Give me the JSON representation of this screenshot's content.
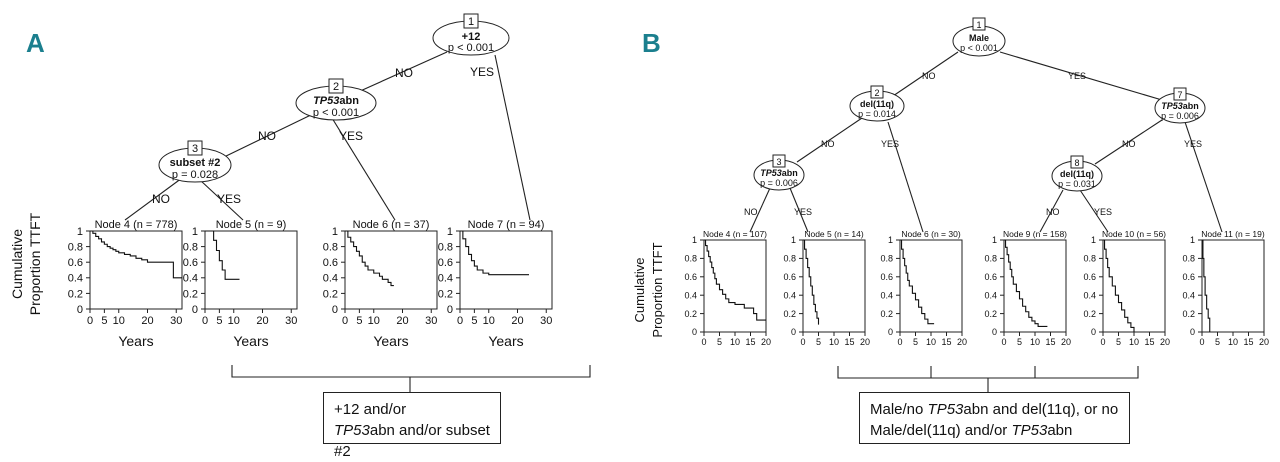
{
  "panelA": {
    "letter": "A",
    "ylabel_line1": "Cumulative",
    "ylabel_line2": "Proportion TTFT",
    "nodes": [
      {
        "num": "1",
        "label": "+12",
        "pval": "p < 0.001"
      },
      {
        "num": "2",
        "label_italic": "TP53",
        "label_rest": "abn",
        "pval": "p < 0.001"
      },
      {
        "num": "3",
        "label": "subset #2",
        "pval": "p = 0.028"
      }
    ],
    "edges": {
      "no1": "NO",
      "yes1": "YES",
      "no2": "NO",
      "yes2": "YES",
      "no3": "NO",
      "yes3": "YES"
    },
    "y_ticks": [
      "0",
      "0.2",
      "0.4",
      "0.6",
      "0.8",
      "1"
    ],
    "x_ticks": [
      "0",
      "5",
      "10",
      "20",
      "30"
    ],
    "x_label": "Years",
    "terminals": [
      {
        "title": "Node 4 (n = 778)"
      },
      {
        "title": "Node 5 (n = 9)"
      },
      {
        "title": "Node 6 (n = 37)"
      },
      {
        "title": "Node 7 (n = 94)"
      }
    ],
    "summary_line1": "+12 and/or",
    "summary_line2_italic": "TP53",
    "summary_line2_rest": "abn and/or subset #2"
  },
  "panelB": {
    "letter": "B",
    "ylabel_line1": "Cumulative",
    "ylabel_line2": "Proportion TTFT",
    "nodes": [
      {
        "num": "1",
        "label": "Male",
        "pval": "p < 0.001"
      },
      {
        "num": "2",
        "label": "del(11q)",
        "pval": "p = 0.014"
      },
      {
        "num": "3",
        "label_italic": "TP53",
        "label_rest": "abn",
        "pval": "p = 0.006"
      },
      {
        "num": "7",
        "label_italic": "TP53",
        "label_rest": "abn",
        "pval": "p = 0.006"
      },
      {
        "num": "8",
        "label": "del(11q)",
        "pval": "p = 0.031"
      }
    ],
    "edges": {
      "no1": "NO",
      "yes1": "YES",
      "no2": "NO",
      "yes2": "YES",
      "no3": "NO",
      "yes3": "YES",
      "no7": "NO",
      "yes7": "YES",
      "no8": "NO",
      "yes8": "YES"
    },
    "y_ticks": [
      "0",
      "0.2",
      "0.4",
      "0.6",
      "0.8",
      "1"
    ],
    "x_ticks": [
      "0",
      "5",
      "10",
      "15",
      "20"
    ],
    "terminals": [
      {
        "title": "Node 4 (n = 107)"
      },
      {
        "title": "Node 5 (n = 14)"
      },
      {
        "title": "Node 6 (n = 30)"
      },
      {
        "title": "Node 9 (n = 158)"
      },
      {
        "title": "Node 10 (n = 56)"
      },
      {
        "title": "Node 11 (n = 19)"
      }
    ],
    "summary_line1_a": "Male/no ",
    "summary_line1_italic": "TP53",
    "summary_line1_b": "abn and del(11q), or no",
    "summary_line2_a": "Male/del(11q) and/or ",
    "summary_line2_italic": "TP53",
    "summary_line2_b": "abn"
  }
}
